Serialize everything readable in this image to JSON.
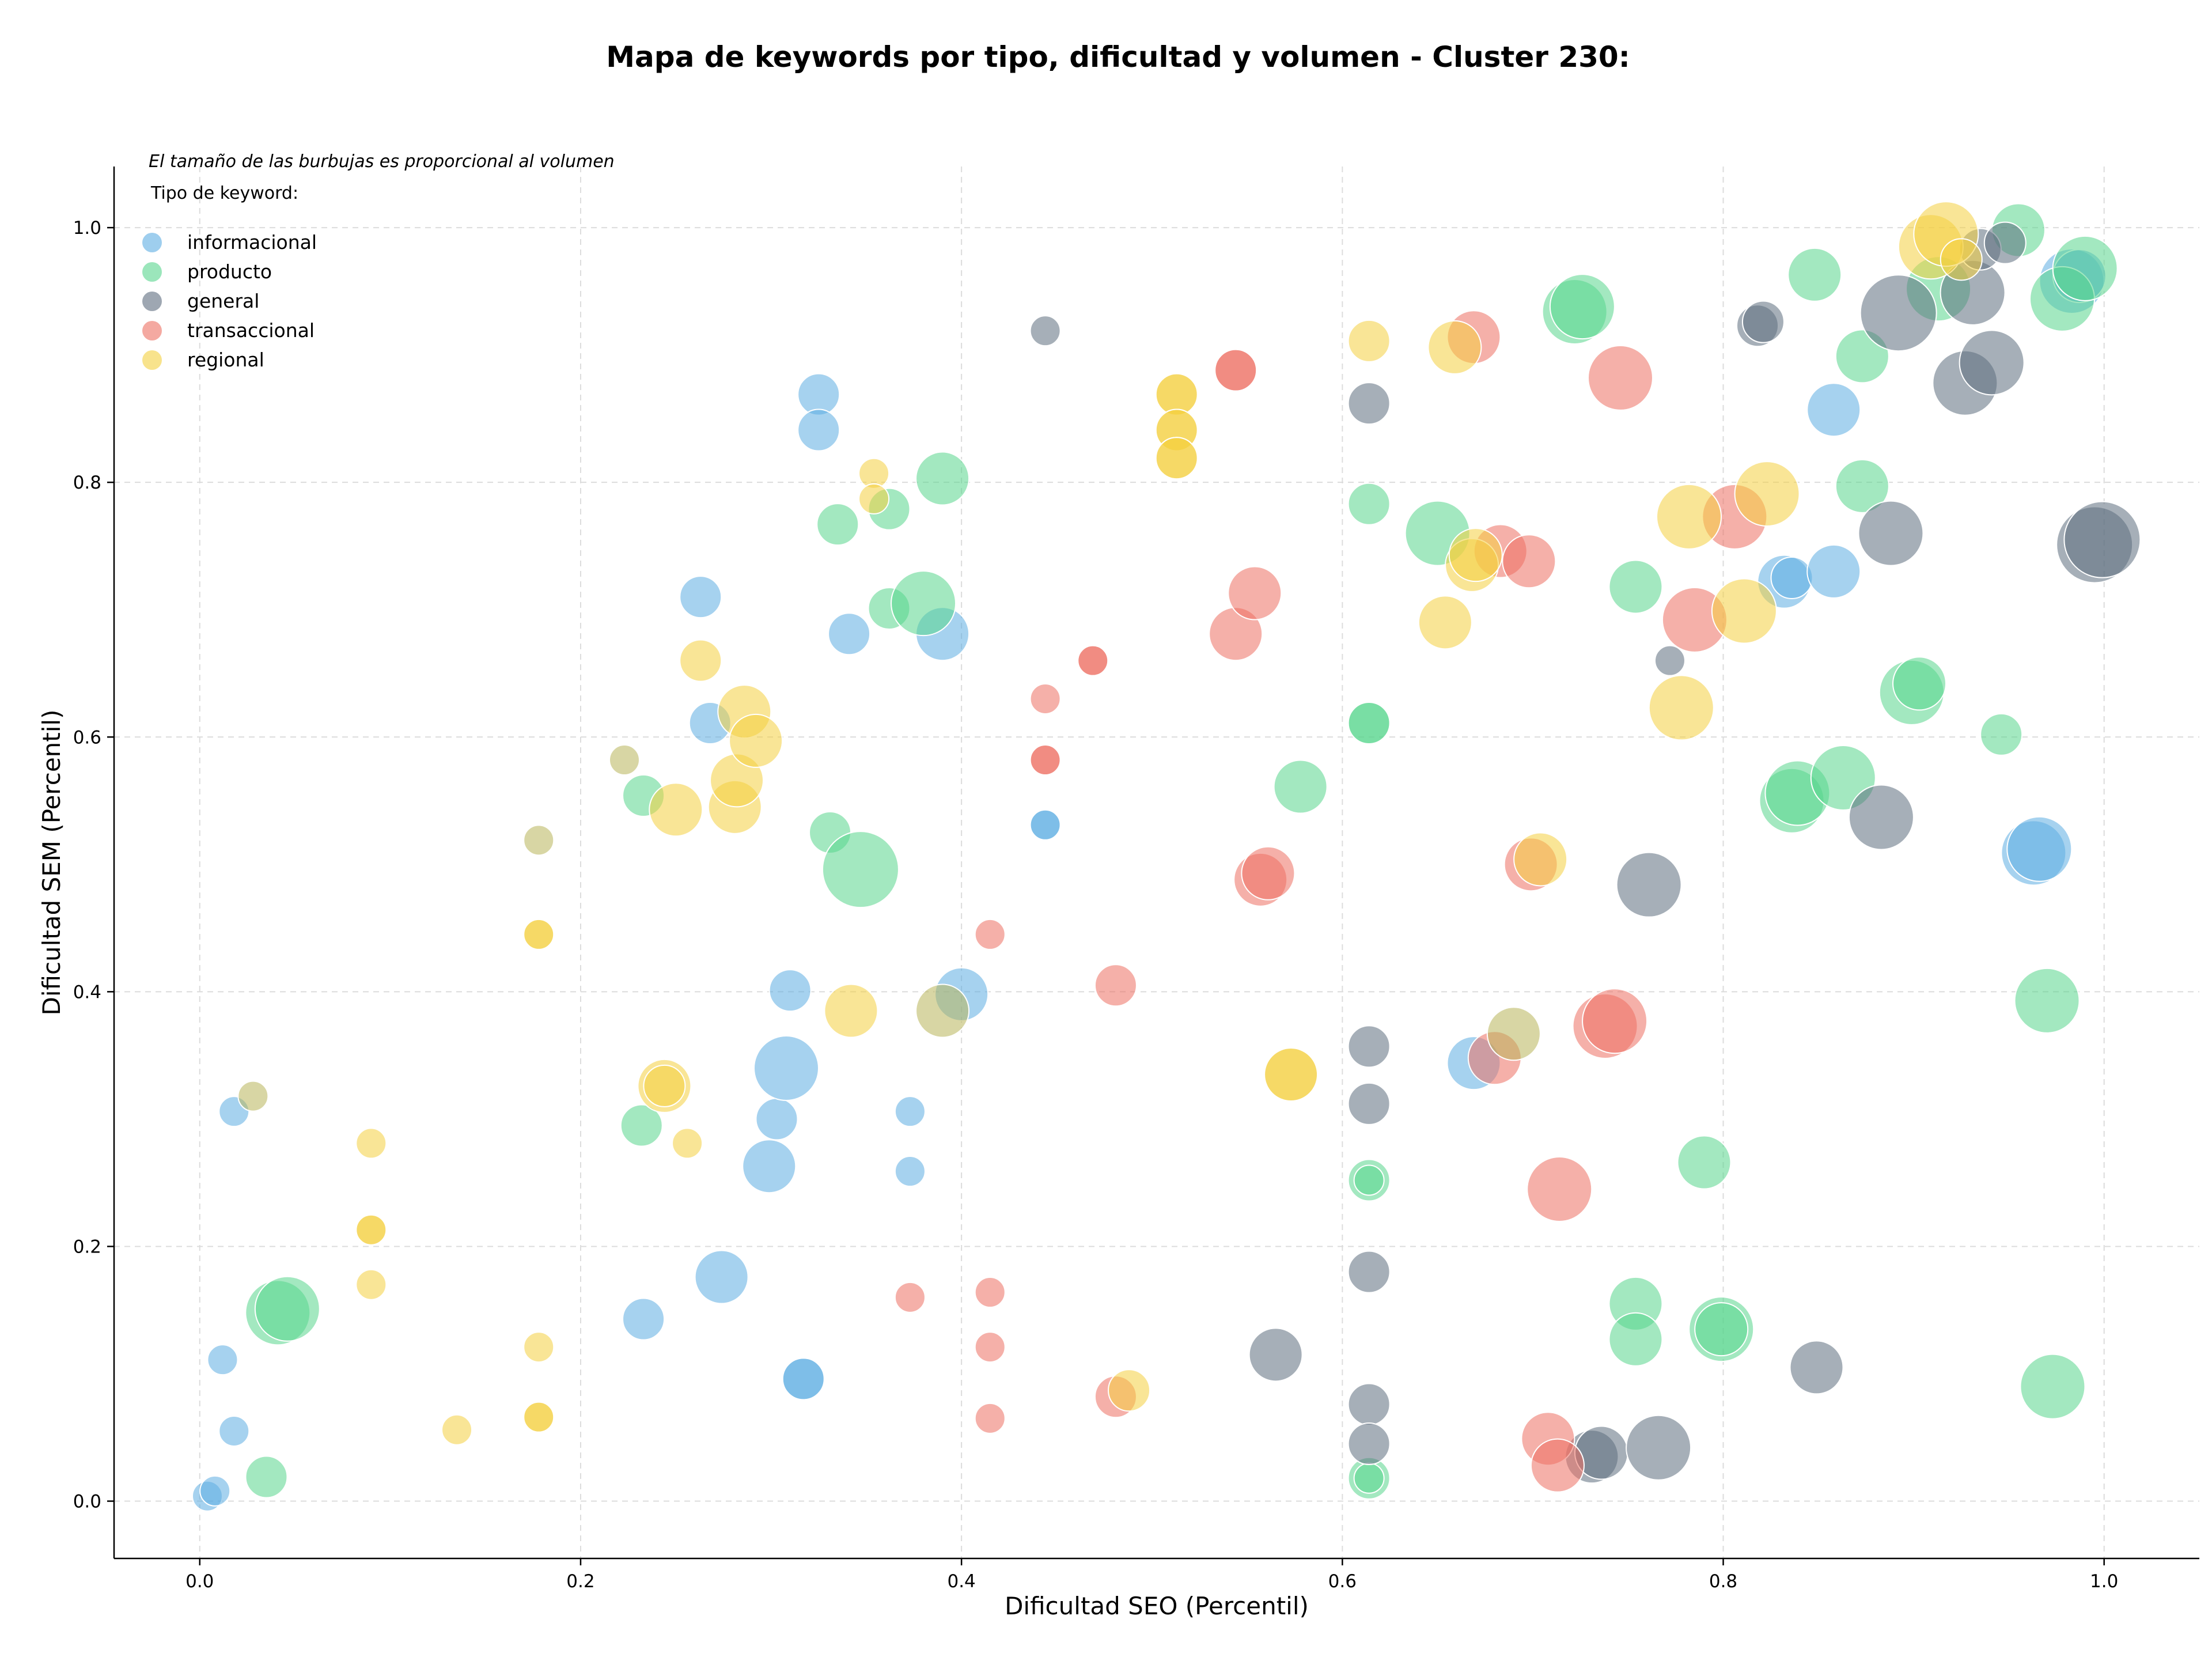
{
  "chart_data": {
    "type": "scatter",
    "title": "Mapa de keywords por tipo, dificultad y volumen - Cluster 230:",
    "xlabel": "Dificultad SEO (Percentil)",
    "ylabel": "Dificultad SEM (Percentil)",
    "xlim": [
      -0.045,
      1.05
    ],
    "ylim": [
      -0.045,
      1.048
    ],
    "xticks": [
      0.0,
      0.2,
      0.4,
      0.6,
      0.8,
      1.0
    ],
    "xtick_labels": [
      "0.0",
      "0.2",
      "0.4",
      "0.6",
      "0.8",
      "1.0"
    ],
    "yticks": [
      0.0,
      0.2,
      0.4,
      0.6,
      0.8,
      1.0
    ],
    "ytick_labels": [
      "0.0",
      "0.2",
      "0.4",
      "0.6",
      "0.8",
      "1.0"
    ],
    "grid": true,
    "legend_placement": "top-left",
    "note": "El tamaño de las burbujas es proporcional al volumen",
    "legend_title": "Tipo de keyword:",
    "series": [
      {
        "name": "informacional",
        "color": "#5dade2",
        "points": [
          [
            0.004,
            0.004,
            1
          ],
          [
            0.008,
            0.008,
            1
          ],
          [
            0.012,
            0.111,
            1
          ],
          [
            0.018,
            0.055,
            1
          ],
          [
            0.018,
            0.306,
            1
          ],
          [
            0.233,
            0.143,
            2
          ],
          [
            0.263,
            0.71,
            2
          ],
          [
            0.268,
            0.611,
            2
          ],
          [
            0.274,
            0.176,
            3
          ],
          [
            0.299,
            0.263,
            3
          ],
          [
            0.303,
            0.3,
            2
          ],
          [
            0.308,
            0.34,
            4
          ],
          [
            0.31,
            0.401,
            2
          ],
          [
            0.325,
            0.869,
            2
          ],
          [
            0.325,
            0.841,
            2
          ],
          [
            0.341,
            0.681,
            2
          ],
          [
            0.373,
            0.306,
            1
          ],
          [
            0.373,
            0.259,
            1
          ],
          [
            0.39,
            0.681,
            3
          ],
          [
            0.4,
            0.398,
            3
          ],
          [
            0.444,
            0.531,
            1
          ],
          [
            0.444,
            0.531,
            1
          ],
          [
            0.317,
            0.096,
            2
          ],
          [
            0.317,
            0.096,
            2
          ],
          [
            0.669,
            0.344,
            3
          ],
          [
            0.832,
            0.722,
            3
          ],
          [
            0.836,
            0.725,
            2
          ],
          [
            0.858,
            0.857,
            3
          ],
          [
            0.858,
            0.73,
            3
          ],
          [
            0.963,
            0.509,
            4
          ],
          [
            0.966,
            0.512,
            4
          ],
          [
            0.983,
            0.958,
            4
          ],
          [
            0.987,
            0.962,
            3
          ]
        ]
      },
      {
        "name": "producto",
        "color": "#58d68d",
        "points": [
          [
            0.035,
            0.019,
            2
          ],
          [
            0.041,
            0.148,
            4
          ],
          [
            0.046,
            0.151,
            4
          ],
          [
            0.232,
            0.295,
            2
          ],
          [
            0.233,
            0.554,
            2
          ],
          [
            0.331,
            0.525,
            2
          ],
          [
            0.335,
            0.767,
            2
          ],
          [
            0.347,
            0.496,
            5
          ],
          [
            0.362,
            0.779,
            2
          ],
          [
            0.362,
            0.701,
            2
          ],
          [
            0.38,
            0.705,
            4
          ],
          [
            0.39,
            0.803,
            3
          ],
          [
            0.578,
            0.561,
            3
          ],
          [
            0.614,
            0.611,
            2
          ],
          [
            0.614,
            0.611,
            2
          ],
          [
            0.614,
            0.783,
            2
          ],
          [
            0.614,
            0.252,
            2
          ],
          [
            0.614,
            0.252,
            1
          ],
          [
            0.614,
            0.018,
            2
          ],
          [
            0.614,
            0.018,
            1
          ],
          [
            0.65,
            0.76,
            4
          ],
          [
            0.722,
            0.934,
            4
          ],
          [
            0.726,
            0.938,
            4
          ],
          [
            0.754,
            0.718,
            3
          ],
          [
            0.754,
            0.155,
            3
          ],
          [
            0.754,
            0.127,
            3
          ],
          [
            0.79,
            0.266,
            3
          ],
          [
            0.799,
            0.135,
            4
          ],
          [
            0.799,
            0.135,
            3
          ],
          [
            0.836,
            0.55,
            4
          ],
          [
            0.839,
            0.556,
            4
          ],
          [
            0.848,
            0.963,
            3
          ],
          [
            0.863,
            0.568,
            4
          ],
          [
            0.873,
            0.899,
            3
          ],
          [
            0.873,
            0.797,
            3
          ],
          [
            0.899,
            0.635,
            4
          ],
          [
            0.903,
            0.642,
            3
          ],
          [
            0.913,
            0.952,
            4
          ],
          [
            0.946,
            0.602,
            2
          ],
          [
            0.955,
            0.998,
            3
          ],
          [
            0.97,
            0.393,
            4
          ],
          [
            0.973,
            0.09,
            4
          ],
          [
            0.978,
            0.944,
            4
          ],
          [
            0.99,
            0.968,
            4
          ]
        ]
      },
      {
        "name": "general",
        "color": "#5d6d7e",
        "points": [
          [
            0.444,
            0.919,
            1
          ],
          [
            0.614,
            0.862,
            2
          ],
          [
            0.614,
            0.357,
            2
          ],
          [
            0.614,
            0.312,
            2
          ],
          [
            0.614,
            0.18,
            2
          ],
          [
            0.614,
            0.076,
            2
          ],
          [
            0.614,
            0.045,
            2
          ],
          [
            0.565,
            0.115,
            3
          ],
          [
            0.731,
            0.035,
            3
          ],
          [
            0.736,
            0.038,
            3
          ],
          [
            0.761,
            0.484,
            4
          ],
          [
            0.766,
            0.042,
            4
          ],
          [
            0.772,
            0.66,
            1
          ],
          [
            0.818,
            0.923,
            2
          ],
          [
            0.821,
            0.926,
            2
          ],
          [
            0.849,
            0.105,
            3
          ],
          [
            0.883,
            0.537,
            4
          ],
          [
            0.888,
            0.76,
            4
          ],
          [
            0.892,
            0.933,
            5
          ],
          [
            0.927,
            0.878,
            4
          ],
          [
            0.931,
            0.949,
            4
          ],
          [
            0.935,
            0.983,
            2
          ],
          [
            0.941,
            0.894,
            4
          ],
          [
            0.948,
            0.988,
            2
          ],
          [
            0.995,
            0.751,
            5
          ],
          [
            0.999,
            0.755,
            5
          ]
        ]
      },
      {
        "name": "transaccional",
        "color": "#ec7063",
        "points": [
          [
            0.373,
            0.16,
            1
          ],
          [
            0.415,
            0.445,
            1
          ],
          [
            0.415,
            0.164,
            1
          ],
          [
            0.415,
            0.121,
            1
          ],
          [
            0.415,
            0.065,
            1
          ],
          [
            0.444,
            0.63,
            1
          ],
          [
            0.444,
            0.582,
            1
          ],
          [
            0.444,
            0.582,
            1
          ],
          [
            0.469,
            0.66,
            1
          ],
          [
            0.469,
            0.66,
            1
          ],
          [
            0.481,
            0.405,
            2
          ],
          [
            0.481,
            0.082,
            2
          ],
          [
            0.544,
            0.681,
            3
          ],
          [
            0.544,
            0.888,
            2
          ],
          [
            0.544,
            0.888,
            2
          ],
          [
            0.554,
            0.713,
            3
          ],
          [
            0.557,
            0.488,
            3
          ],
          [
            0.561,
            0.493,
            3
          ],
          [
            0.669,
            0.914,
            3
          ],
          [
            0.68,
            0.348,
            3
          ],
          [
            0.683,
            0.746,
            3
          ],
          [
            0.698,
            0.738,
            3
          ],
          [
            0.699,
            0.5,
            3
          ],
          [
            0.708,
            0.049,
            3
          ],
          [
            0.713,
            0.028,
            3
          ],
          [
            0.714,
            0.245,
            4
          ],
          [
            0.738,
            0.373,
            4
          ],
          [
            0.743,
            0.377,
            4
          ],
          [
            0.746,
            0.882,
            4
          ],
          [
            0.785,
            0.692,
            4
          ],
          [
            0.806,
            0.773,
            4
          ]
        ]
      },
      {
        "name": "regional",
        "color": "#f4d03f",
        "points": [
          [
            0.09,
            0.281,
            1
          ],
          [
            0.09,
            0.213,
            1
          ],
          [
            0.09,
            0.213,
            1
          ],
          [
            0.09,
            0.17,
            1
          ],
          [
            0.135,
            0.056,
            1
          ],
          [
            0.178,
            0.445,
            1
          ],
          [
            0.178,
            0.445,
            1
          ],
          [
            0.178,
            0.121,
            1
          ],
          [
            0.178,
            0.066,
            1
          ],
          [
            0.178,
            0.066,
            1
          ],
          [
            0.244,
            0.326,
            3
          ],
          [
            0.244,
            0.326,
            2
          ],
          [
            0.25,
            0.543,
            3
          ],
          [
            0.256,
            0.281,
            1
          ],
          [
            0.263,
            0.66,
            2
          ],
          [
            0.281,
            0.545,
            3
          ],
          [
            0.282,
            0.566,
            3
          ],
          [
            0.286,
            0.62,
            3
          ],
          [
            0.292,
            0.597,
            3
          ],
          [
            0.342,
            0.385,
            3
          ],
          [
            0.354,
            0.807,
            1
          ],
          [
            0.354,
            0.787,
            1
          ],
          [
            0.513,
            0.869,
            2
          ],
          [
            0.513,
            0.869,
            2
          ],
          [
            0.513,
            0.841,
            2
          ],
          [
            0.513,
            0.841,
            2
          ],
          [
            0.513,
            0.819,
            2
          ],
          [
            0.513,
            0.819,
            2
          ],
          [
            0.573,
            0.335,
            3
          ],
          [
            0.573,
            0.335,
            3
          ],
          [
            0.614,
            0.911,
            2
          ],
          [
            0.654,
            0.69,
            3
          ],
          [
            0.659,
            0.906,
            3
          ],
          [
            0.668,
            0.735,
            3
          ],
          [
            0.67,
            0.743,
            3
          ],
          [
            0.704,
            0.504,
            3
          ],
          [
            0.778,
            0.623,
            4
          ],
          [
            0.782,
            0.773,
            4
          ],
          [
            0.488,
            0.087,
            2
          ],
          [
            0.811,
            0.699,
            4
          ],
          [
            0.823,
            0.791,
            4
          ],
          [
            0.909,
            0.985,
            4
          ],
          [
            0.917,
            0.995,
            4
          ],
          [
            0.925,
            0.975,
            2
          ]
        ]
      },
      {
        "name": "",
        "color": "#b8b45a",
        "points": [
          [
            0.028,
            0.318,
            1
          ],
          [
            0.178,
            0.519,
            1
          ],
          [
            0.223,
            0.582,
            1
          ],
          [
            0.39,
            0.385,
            3
          ],
          [
            0.69,
            0.367,
            3
          ]
        ]
      }
    ]
  }
}
